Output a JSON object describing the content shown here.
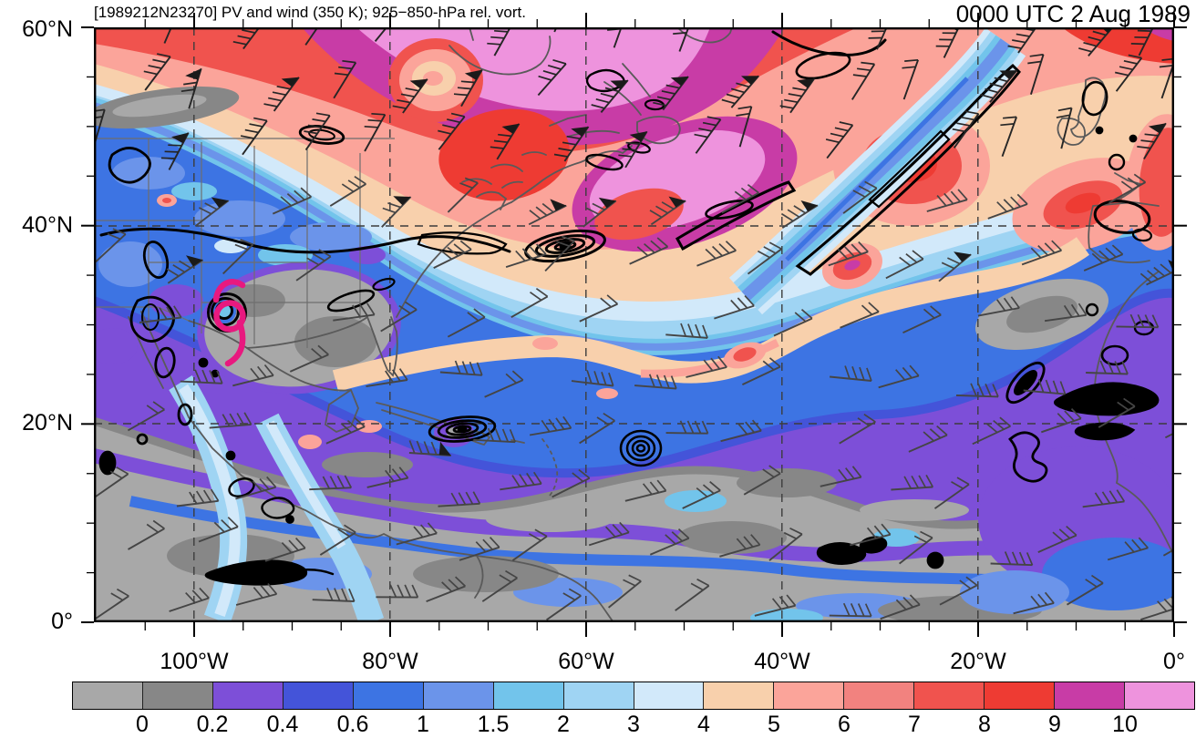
{
  "header": {
    "title": "[1989212N23270] PV and wind (350 K); 925−850-hPa rel. vort.",
    "datetime": "0000 UTC 2 Aug 1989"
  },
  "axes": {
    "lat_labels": [
      "60°N",
      "40°N",
      "20°N",
      "0°"
    ],
    "lon_labels": [
      "100°W",
      "80°W",
      "60°W",
      "40°W",
      "20°W",
      "0°"
    ]
  },
  "colorbar": {
    "tick_labels": [
      "0",
      "0.2",
      "0.4",
      "0.6",
      "1",
      "1.5",
      "2",
      "3",
      "4",
      "5",
      "6",
      "7",
      "8",
      "9",
      "10"
    ],
    "segment_colors": [
      "#a8a8a8",
      "#878787",
      "#7d4fd8",
      "#4454d9",
      "#3d74e3",
      "#6b94ea",
      "#72c4eb",
      "#9fd4f3",
      "#d2e9fa",
      "#f8d0ac",
      "#fba49a",
      "#f2827f",
      "#f0534e",
      "#ee3b33",
      "#c83ca6",
      "#ee93dd"
    ]
  },
  "map": {
    "storm_symbol_color": "#e8197f",
    "coastline_color": "#5a5a5a",
    "wind_barb_color": "#454545",
    "vorticity_contour_color": "#000000",
    "graticule": "dashed lines every 20° latitude/longitude"
  },
  "chart_data": {
    "type": "heatmap",
    "title": "[1989212N23270] PV and wind (350 K); 925−850-hPa rel. vort.",
    "valid_time": "0000 UTC 2 Aug 1989",
    "x_axis": {
      "ticks": [
        "100°W",
        "80°W",
        "60°W",
        "40°W",
        "20°W",
        "0°"
      ],
      "range": [
        "110°W",
        "0°"
      ],
      "minor_tick_interval_deg": 5
    },
    "y_axis": {
      "ticks": [
        "0°",
        "20°N",
        "40°N",
        "60°N"
      ],
      "range": [
        "0°",
        "60°N"
      ],
      "minor_tick_interval_deg": 5
    },
    "color_levels": [
      0,
      0.2,
      0.4,
      0.6,
      1,
      1.5,
      2,
      3,
      4,
      5,
      6,
      7,
      8,
      9,
      10
    ],
    "shaded_field": "Potential vorticity on the 350 K surface with wind barbs",
    "contour_field": "925−850-hPa relative vorticity (black contours)",
    "annotations": [
      {
        "type": "tropical-cyclone-symbol",
        "storm_id": "1989212N23270",
        "approx_location": "31°N, 96°W"
      }
    ],
    "pattern_summary": "High PV (>5; red, magenta, pink) poleward of about 45°N; a sloping band of intermediate PV (1–4; light blues) across the mid-latitude North Atlantic with embedded 4–5 filaments; low PV (<0.2; gray) over the tropics/subtropics threaded by 0.2–1 filaments; tropical cyclone symbol over Texas near 31°N, 96°W."
  }
}
